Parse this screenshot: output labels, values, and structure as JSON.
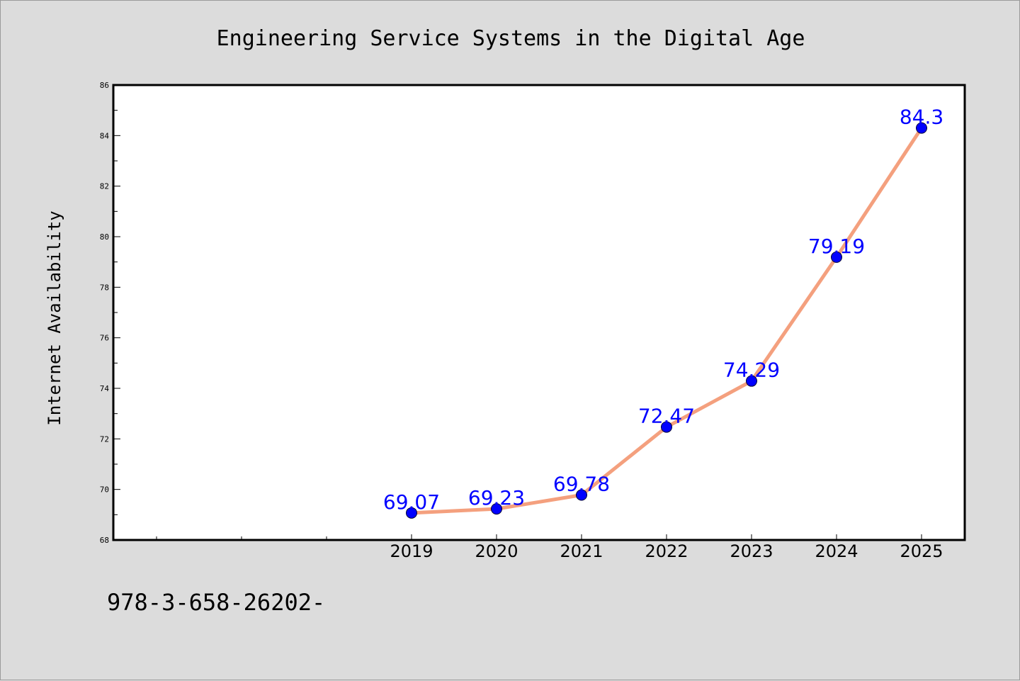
{
  "chart_data": {
    "type": "line",
    "title": "Engineering Service Systems in the Digital Age",
    "xlabel": "",
    "ylabel": "Internet Availability",
    "categories": [
      "2019",
      "2020",
      "2021",
      "2022",
      "2023",
      "2024",
      "2025"
    ],
    "values": [
      69.07,
      69.23,
      69.78,
      72.47,
      74.29,
      79.19,
      84.3
    ],
    "data_labels": [
      "69.07",
      "69.23",
      "69.78",
      "72.47",
      "74.29",
      "79.19",
      "84.3"
    ],
    "yticks": [
      "68",
      "70",
      "72",
      "74",
      "76",
      "78",
      "80",
      "82",
      "84",
      "86"
    ],
    "ylim": [
      68,
      86
    ],
    "grid": false,
    "line_color": "#f4a07e",
    "marker_color": "#0000ff",
    "label_color": "#0000ff"
  },
  "footer": {
    "code": "978-3-658-26202-"
  }
}
